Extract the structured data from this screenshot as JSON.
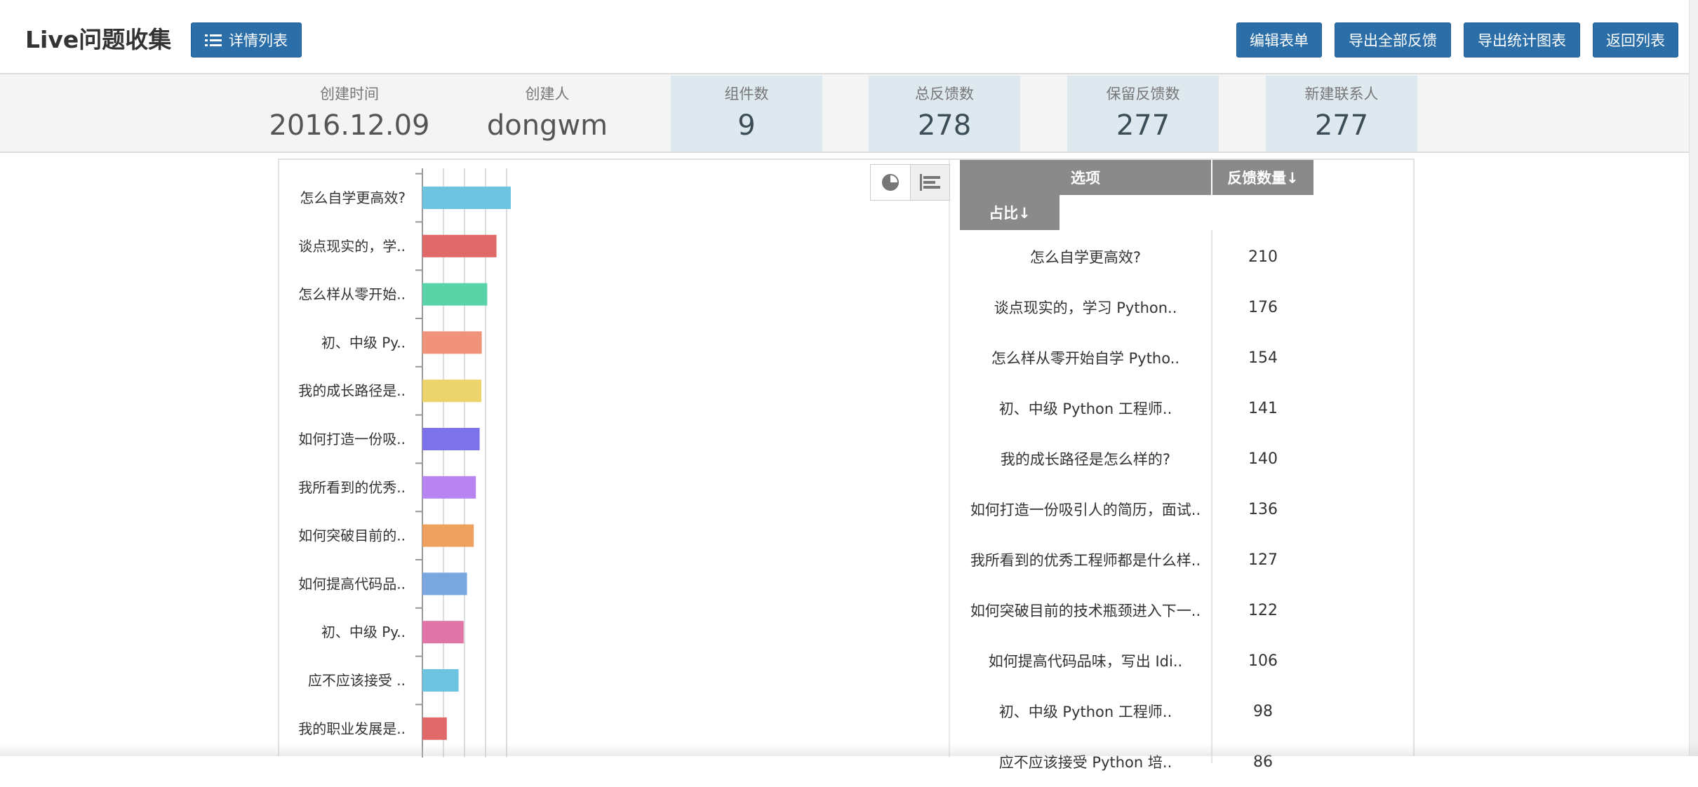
{
  "header": {
    "title": "Live问题收集",
    "detail_list_button": "详情列表",
    "buttons": {
      "edit_form": "编辑表单",
      "export_all_feedback": "导出全部反馈",
      "export_stat_chart": "导出统计图表",
      "back_to_list": "返回列表"
    },
    "accent_color": "#2b6ea8"
  },
  "stats": {
    "created_time": {
      "label": "创建时间",
      "value": "2016.12.09"
    },
    "creator": {
      "label": "创建人",
      "value": "dongwm"
    },
    "components": {
      "label": "组件数",
      "value": "9"
    },
    "total_feedback": {
      "label": "总反馈数",
      "value": "278"
    },
    "kept_feedback": {
      "label": "保留反馈数",
      "value": "277"
    },
    "new_contacts": {
      "label": "新建联系人",
      "value": "277"
    }
  },
  "toolbox": {
    "pie_icon": "pie-chart-icon",
    "bar_icon": "bar-chart-icon",
    "active": "bar"
  },
  "table": {
    "headers": {
      "option": "选项",
      "count": "反馈数量↓",
      "ratio": "占比↓"
    },
    "rows": [
      {
        "option": "怎么自学更高效?",
        "count": "210"
      },
      {
        "option": "谈点现实的，学习 Python..",
        "count": "176"
      },
      {
        "option": "怎么样从零开始自学 Pytho..",
        "count": "154"
      },
      {
        "option": "初、中级 Python 工程师..",
        "count": "141"
      },
      {
        "option": "我的成长路径是怎么样的?",
        "count": "140"
      },
      {
        "option": "如何打造一份吸引人的简历，面试..",
        "count": "136"
      },
      {
        "option": "我所看到的优秀工程师都是什么样..",
        "count": "127"
      },
      {
        "option": "如何突破目前的技术瓶颈进入下一..",
        "count": "122"
      },
      {
        "option": "如何提高代码品味，写出 Idi..",
        "count": "106"
      },
      {
        "option": "初、中级 Python 工程师..",
        "count": "98"
      },
      {
        "option": "应不应该接受 Python 培..",
        "count": "86"
      }
    ]
  },
  "chart_data": {
    "type": "bar",
    "orientation": "horizontal",
    "categories": [
      "怎么自学更高效?",
      "谈点现实的，学..",
      "怎么样从零开始..",
      "初、中级 Py..",
      "我的成长路径是..",
      "如何打造一份吸..",
      "我所看到的优秀..",
      "如何突破目前的..",
      "如何提高代码品..",
      "初、中级 Py..",
      "应不应该接受 ..",
      "我的职业发展是.."
    ],
    "values": [
      210,
      176,
      154,
      141,
      140,
      136,
      127,
      122,
      106,
      98,
      86,
      58
    ],
    "colors": [
      "#6ec3e0",
      "#e06a6a",
      "#5bd3a8",
      "#f0937a",
      "#ebd46c",
      "#7e72ea",
      "#b784f2",
      "#eea15f",
      "#7aa7e0",
      "#e275a7",
      "#6ec3e0",
      "#e06a6a"
    ],
    "xlim": [
      0,
      240
    ],
    "grid": true
  }
}
